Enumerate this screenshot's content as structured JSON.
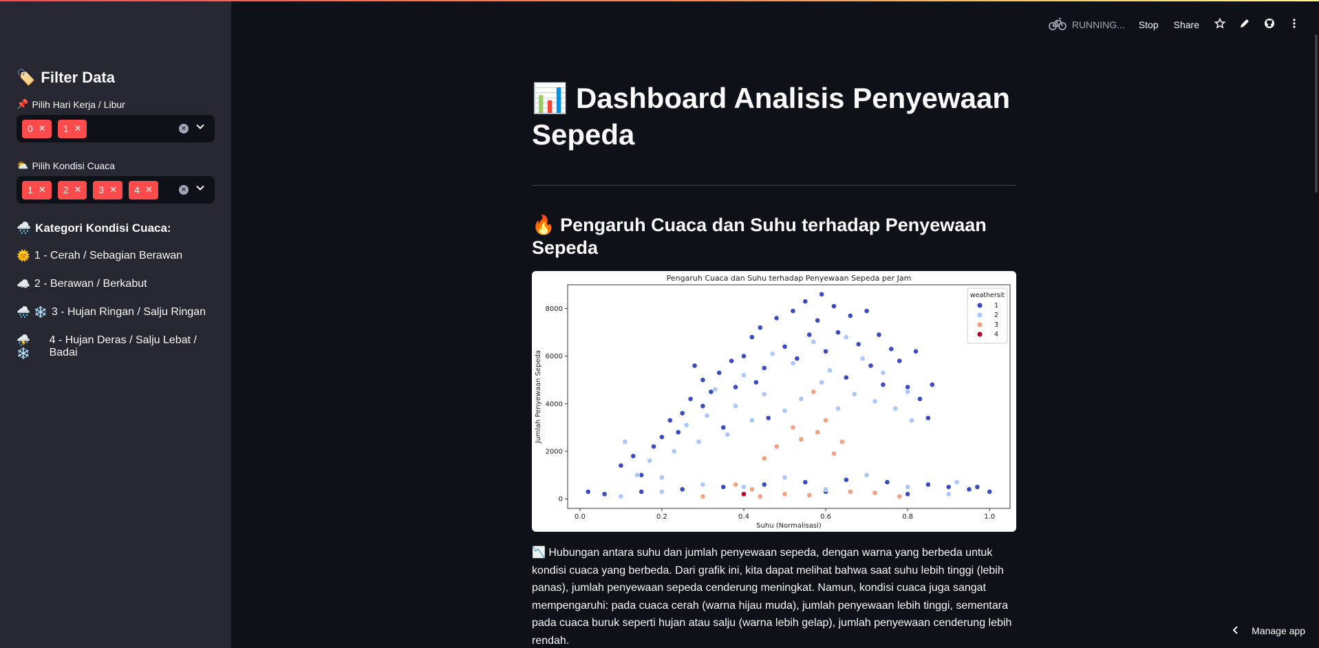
{
  "colors": {
    "background": "#0e1117",
    "sidebar": "#262730",
    "accent": "#ff4b4b",
    "series": {
      "1": "#3a4cc0",
      "2": "#aac7fd",
      "3": "#f5a081",
      "4": "#b40426"
    }
  },
  "toolbar": {
    "status": "RUNNING...",
    "stop_label": "Stop",
    "share_label": "Share",
    "icons": [
      "bike-icon",
      "star-icon",
      "pencil-icon",
      "github-icon",
      "more-icon"
    ]
  },
  "sidebar": {
    "title": "Filter Data",
    "title_emoji": "🏷️",
    "filter_day": {
      "emoji": "📌",
      "label": "Pilih Hari Kerja / Libur",
      "selected": [
        "0",
        "1"
      ]
    },
    "filter_weather": {
      "emoji": "⛅",
      "label": "Pilih Kondisi Cuaca",
      "selected": [
        "1",
        "2",
        "3",
        "4"
      ]
    },
    "categories_title": "Kategori Kondisi Cuaca:",
    "categories_emoji": "🌧️",
    "categories": [
      {
        "emoji": "🌞",
        "text": "1 - Cerah / Sebagian Berawan"
      },
      {
        "emoji": "☁️",
        "text": "2 - Berawan / Berkabut"
      },
      {
        "emoji": "🌧️ ❄️",
        "text": "3 - Hujan Ringan / Salju Ringan"
      },
      {
        "emoji": "⛈️ ❄️",
        "text": "4 - Hujan Deras / Salju Lebat / Badai"
      }
    ]
  },
  "main": {
    "title": "Dashboard Analisis Penyewaan Sepeda",
    "title_emoji": "📊",
    "section_title": "Pengaruh Cuaca dan Suhu terhadap Penyewaan Sepeda",
    "section_emoji": "🔥",
    "description_emoji": "📉",
    "description": "Hubungan antara suhu dan jumlah penyewaan sepeda, dengan warna yang berbeda untuk kondisi cuaca yang berbeda. Dari grafik ini, kita dapat melihat bahwa saat suhu lebih tinggi (lebih panas), jumlah penyewaan sepeda cenderung meningkat. Namun, kondisi cuaca juga sangat mempengaruhi: pada cuaca cerah (warna hijau muda), jumlah penyewaan lebih tinggi, sementara pada cuaca buruk seperti hujan atau salju (warna lebih gelap), jumlah penyewaan cenderung lebih rendah."
  },
  "manage_app": "Manage app",
  "chart_data": {
    "type": "scatter",
    "title": "Pengaruh Cuaca dan Suhu terhadap Penyewaan Sepeda per Jam",
    "xlabel": "Suhu (Normalisasi)",
    "ylabel": "Jumlah Penyewaan Sepeda",
    "xlim": [
      -0.03,
      1.05
    ],
    "ylim": [
      -400,
      9000
    ],
    "xticks": [
      "0.0",
      "0.2",
      "0.4",
      "0.6",
      "0.8",
      "1.0"
    ],
    "xtick_values": [
      0.0,
      0.2,
      0.4,
      0.6,
      0.8,
      1.0
    ],
    "yticks": [
      "0",
      "2000",
      "4000",
      "6000",
      "8000"
    ],
    "ytick_values": [
      0,
      2000,
      4000,
      6000,
      8000
    ],
    "legend_title": "weathersit",
    "legend_position": "top-right",
    "grid": false,
    "series": [
      {
        "name": "1",
        "points": [
          [
            0.02,
            300
          ],
          [
            0.06,
            200
          ],
          [
            0.1,
            1400
          ],
          [
            0.13,
            1800
          ],
          [
            0.15,
            1000
          ],
          [
            0.18,
            2200
          ],
          [
            0.2,
            2600
          ],
          [
            0.22,
            3300
          ],
          [
            0.24,
            2800
          ],
          [
            0.25,
            3600
          ],
          [
            0.27,
            4200
          ],
          [
            0.28,
            5600
          ],
          [
            0.3,
            3900
          ],
          [
            0.3,
            5000
          ],
          [
            0.32,
            4500
          ],
          [
            0.34,
            5300
          ],
          [
            0.35,
            3000
          ],
          [
            0.37,
            5800
          ],
          [
            0.38,
            4700
          ],
          [
            0.4,
            6000
          ],
          [
            0.42,
            6800
          ],
          [
            0.43,
            4900
          ],
          [
            0.44,
            7200
          ],
          [
            0.45,
            5500
          ],
          [
            0.46,
            3400
          ],
          [
            0.48,
            7600
          ],
          [
            0.5,
            6400
          ],
          [
            0.52,
            7900
          ],
          [
            0.53,
            5900
          ],
          [
            0.55,
            8300
          ],
          [
            0.56,
            6900
          ],
          [
            0.58,
            7500
          ],
          [
            0.59,
            8600
          ],
          [
            0.6,
            6200
          ],
          [
            0.62,
            8100
          ],
          [
            0.63,
            7000
          ],
          [
            0.65,
            5100
          ],
          [
            0.66,
            7700
          ],
          [
            0.68,
            6500
          ],
          [
            0.7,
            7900
          ],
          [
            0.71,
            5600
          ],
          [
            0.73,
            6900
          ],
          [
            0.74,
            4800
          ],
          [
            0.76,
            6300
          ],
          [
            0.78,
            5800
          ],
          [
            0.8,
            4700
          ],
          [
            0.82,
            6200
          ],
          [
            0.83,
            4200
          ],
          [
            0.85,
            3400
          ],
          [
            0.86,
            4800
          ],
          [
            0.25,
            400
          ],
          [
            0.35,
            500
          ],
          [
            0.45,
            600
          ],
          [
            0.55,
            700
          ],
          [
            0.65,
            800
          ],
          [
            0.75,
            700
          ],
          [
            0.85,
            600
          ],
          [
            0.95,
            400
          ],
          [
            1.0,
            300
          ],
          [
            0.97,
            500
          ],
          [
            0.15,
            300
          ],
          [
            0.4,
            200
          ],
          [
            0.6,
            300
          ],
          [
            0.8,
            200
          ],
          [
            0.9,
            500
          ]
        ]
      },
      {
        "name": "2",
        "points": [
          [
            0.11,
            2400
          ],
          [
            0.14,
            1000
          ],
          [
            0.17,
            1600
          ],
          [
            0.2,
            900
          ],
          [
            0.23,
            2000
          ],
          [
            0.26,
            3100
          ],
          [
            0.29,
            2400
          ],
          [
            0.31,
            3500
          ],
          [
            0.33,
            4600
          ],
          [
            0.36,
            2700
          ],
          [
            0.38,
            3900
          ],
          [
            0.4,
            5200
          ],
          [
            0.42,
            3300
          ],
          [
            0.45,
            4400
          ],
          [
            0.47,
            6100
          ],
          [
            0.5,
            3700
          ],
          [
            0.52,
            5700
          ],
          [
            0.54,
            4200
          ],
          [
            0.57,
            6600
          ],
          [
            0.59,
            4900
          ],
          [
            0.61,
            5400
          ],
          [
            0.63,
            3800
          ],
          [
            0.65,
            6800
          ],
          [
            0.67,
            4400
          ],
          [
            0.69,
            5900
          ],
          [
            0.72,
            4100
          ],
          [
            0.74,
            5300
          ],
          [
            0.77,
            3800
          ],
          [
            0.8,
            4500
          ],
          [
            0.81,
            3300
          ],
          [
            0.2,
            300
          ],
          [
            0.3,
            600
          ],
          [
            0.4,
            500
          ],
          [
            0.5,
            900
          ],
          [
            0.6,
            400
          ],
          [
            0.7,
            1000
          ],
          [
            0.8,
            500
          ],
          [
            0.9,
            200
          ],
          [
            0.92,
            700
          ],
          [
            0.1,
            100
          ]
        ]
      },
      {
        "name": "3",
        "points": [
          [
            0.38,
            600
          ],
          [
            0.42,
            400
          ],
          [
            0.45,
            1700
          ],
          [
            0.48,
            2200
          ],
          [
            0.52,
            3000
          ],
          [
            0.54,
            2500
          ],
          [
            0.57,
            4500
          ],
          [
            0.6,
            3300
          ],
          [
            0.62,
            1900
          ],
          [
            0.64,
            2400
          ],
          [
            0.44,
            100
          ],
          [
            0.5,
            200
          ],
          [
            0.56,
            150
          ],
          [
            0.66,
            300
          ],
          [
            0.72,
            250
          ],
          [
            0.78,
            100
          ],
          [
            0.3,
            100
          ],
          [
            0.58,
            2800
          ]
        ]
      },
      {
        "name": "4",
        "points": [
          [
            0.4,
            200
          ]
        ]
      }
    ]
  }
}
